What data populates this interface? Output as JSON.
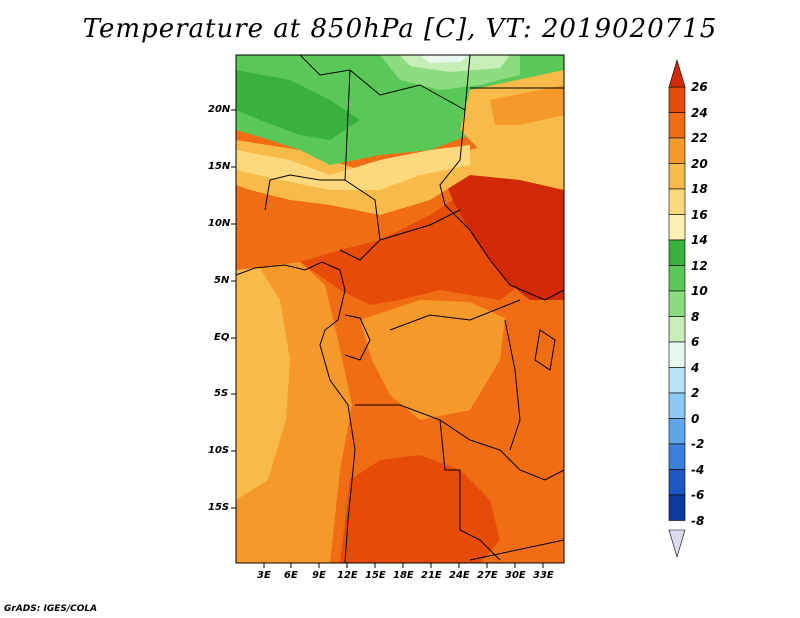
{
  "title": "Temperature at 850hPa [C], VT: 2019020715",
  "credit": "GrADS: IGES/COLA",
  "map": {
    "lat_labels": [
      "20N",
      "15N",
      "10N",
      "5N",
      "EQ",
      "5S",
      "10S",
      "15S"
    ],
    "lon_labels": [
      "3E",
      "6E",
      "9E",
      "12E",
      "15E",
      "18E",
      "21E",
      "24E",
      "27E",
      "30E",
      "33E"
    ]
  },
  "colorbar": {
    "labels": [
      "26",
      "24",
      "22",
      "20",
      "18",
      "16",
      "14",
      "12",
      "10",
      "8",
      "6",
      "4",
      "2",
      "0",
      "-2",
      "-4",
      "-6",
      "-8"
    ],
    "colors": [
      "#d22a06",
      "#e64c08",
      "#f06d14",
      "#f59a2a",
      "#f8ba48",
      "#fbd97c",
      "#fdf0b4",
      "#38b23c",
      "#5ac856",
      "#8cdc80",
      "#c6eeb6",
      "#e8f8ee",
      "#bce4f8",
      "#8ec8f4",
      "#5ea6ea",
      "#3a80dc",
      "#1c58c4",
      "#0e3a9e",
      "#071e76"
    ]
  },
  "icons": {
    "top_arrow": "triangle-up-icon",
    "bottom_arrow": "triangle-down-icon"
  }
}
